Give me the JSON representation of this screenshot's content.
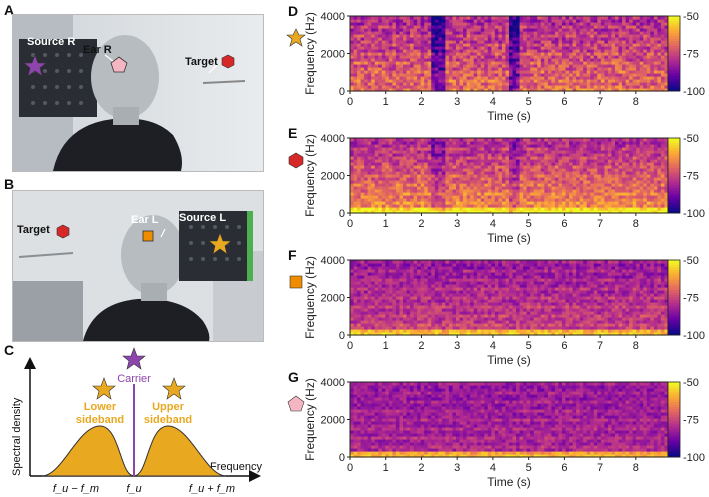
{
  "panels": {
    "A": {
      "letter": "A",
      "source_label": "Source R",
      "ear_label": "Ear R",
      "target_label": "Target"
    },
    "B": {
      "letter": "B",
      "target_label": "Target",
      "ear_label": "Ear L",
      "source_label": "Source L"
    },
    "C": {
      "letter": "C",
      "ylabel": "Spectral density",
      "xlabel": "Frequency",
      "carrier_label": "Carrier",
      "lower_label_1": "Lower",
      "lower_label_2": "sideband",
      "upper_label_1": "Upper",
      "upper_label_2": "sideband",
      "tick_left": "f_u − f_m",
      "tick_mid": "f_u",
      "tick_right": "f_u + f_m"
    }
  },
  "colors": {
    "sideband": "#e8a820",
    "carrier": "#8e44ad",
    "target_marker": "#d62828",
    "ear_l_marker": "#f08c00",
    "ear_r_marker": "#f4b6c2"
  },
  "chart_data": [
    {
      "type": "heatmap",
      "panel": "D",
      "marker": "source-star-gold",
      "ylabel": "Frequency (Hz)",
      "xlabel": "Time (s)",
      "xlim": [
        0,
        8.9
      ],
      "ylim": [
        0,
        4000
      ],
      "xticks": [
        "0",
        "1",
        "2",
        "3",
        "4",
        "5",
        "6",
        "7",
        "8"
      ],
      "yticks": [
        "0",
        "2000",
        "4000"
      ],
      "colorbar": {
        "range": [
          -100,
          -50
        ],
        "ticks": [
          "-50",
          "-75",
          "-100"
        ]
      }
    },
    {
      "type": "heatmap",
      "panel": "E",
      "marker": "target-hexagon-red",
      "ylabel": "Frequency (Hz)",
      "xlabel": "Time (s)",
      "xlim": [
        0,
        8.9
      ],
      "ylim": [
        0,
        4000
      ],
      "xticks": [
        "0",
        "1",
        "2",
        "3",
        "4",
        "5",
        "6",
        "7",
        "8"
      ],
      "yticks": [
        "0",
        "2000",
        "4000"
      ],
      "colorbar": {
        "range": [
          -100,
          -50
        ],
        "ticks": [
          "-50",
          "-75",
          "-100"
        ]
      }
    },
    {
      "type": "heatmap",
      "panel": "F",
      "marker": "ear-l-square-orange",
      "ylabel": "Frequency (Hz)",
      "xlabel": "Time (s)",
      "xlim": [
        0,
        8.9
      ],
      "ylim": [
        0,
        4000
      ],
      "xticks": [
        "0",
        "1",
        "2",
        "3",
        "4",
        "5",
        "6",
        "7",
        "8"
      ],
      "yticks": [
        "0",
        "2000",
        "4000"
      ],
      "colorbar": {
        "range": [
          -100,
          -50
        ],
        "ticks": [
          "-50",
          "-75",
          "-100"
        ]
      }
    },
    {
      "type": "heatmap",
      "panel": "G",
      "marker": "ear-r-pentagon-pink",
      "ylabel": "Frequency (Hz)",
      "xlabel": "Time (s)",
      "xlim": [
        0,
        8.9
      ],
      "ylim": [
        0,
        4000
      ],
      "xticks": [
        "0",
        "1",
        "2",
        "3",
        "4",
        "5",
        "6",
        "7",
        "8"
      ],
      "yticks": [
        "0",
        "2000",
        "4000"
      ],
      "colorbar": {
        "range": [
          -100,
          -50
        ],
        "ticks": [
          "-50",
          "-75",
          "-100"
        ]
      }
    }
  ]
}
